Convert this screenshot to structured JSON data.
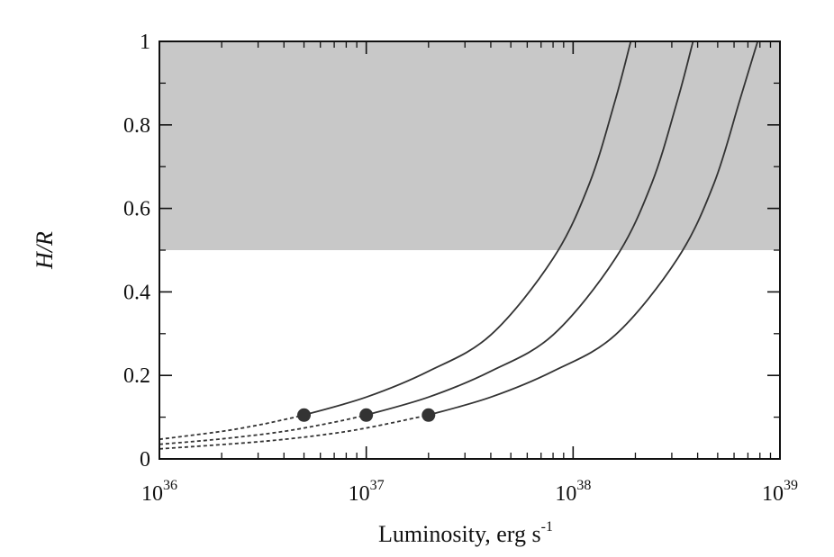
{
  "chart_data": {
    "type": "line",
    "title": "",
    "xlabel": "Luminosity, erg s",
    "xlabel_exponent": "-1",
    "ylabel": "H/R",
    "xscale": "log",
    "xlim": [
      1e+36,
      1e+39
    ],
    "ylim": [
      0,
      1
    ],
    "x_ticks": [
      {
        "value": 1e+36,
        "base": "10",
        "exp": "36"
      },
      {
        "value": 1e+37,
        "base": "10",
        "exp": "37"
      },
      {
        "value": 1e+38,
        "base": "10",
        "exp": "38"
      },
      {
        "value": 1e+39,
        "base": "10",
        "exp": "39"
      }
    ],
    "y_ticks": [
      {
        "value": 0,
        "label": "0"
      },
      {
        "value": 0.2,
        "label": "0.2"
      },
      {
        "value": 0.4,
        "label": "0.4"
      },
      {
        "value": 0.6,
        "label": "0.6"
      },
      {
        "value": 0.8,
        "label": "0.8"
      },
      {
        "value": 1,
        "label": "1"
      }
    ],
    "shaded_region": {
      "y_from": 0.5,
      "y_to": 1.0,
      "color": "#c8c8c8"
    },
    "grid": false,
    "series": [
      {
        "marker": {
          "x": 5e+36,
          "y": 0.105
        },
        "dashed": {
          "x": [
            1e+36,
            2e+36,
            3e+36,
            4e+36,
            5e+36
          ],
          "y": [
            0.047,
            0.066,
            0.081,
            0.094,
            0.105
          ]
        },
        "solid": {
          "x": [
            5e+36,
            1e+37,
            2e+37,
            4e+37,
            8e+37,
            1.2e+38,
            1.6e+38,
            1.9e+38
          ],
          "y": [
            0.105,
            0.148,
            0.21,
            0.297,
            0.48,
            0.66,
            0.86,
            1.0
          ]
        }
      },
      {
        "marker": {
          "x": 1e+37,
          "y": 0.105
        },
        "dashed": {
          "x": [
            1e+36,
            2e+36,
            4e+36,
            7e+36,
            1e+37
          ],
          "y": [
            0.035,
            0.048,
            0.066,
            0.088,
            0.105
          ]
        },
        "solid": {
          "x": [
            1e+37,
            2e+37,
            4e+37,
            8e+37,
            1.6e+38,
            2.4e+38,
            3.2e+38,
            3.8e+38
          ],
          "y": [
            0.105,
            0.148,
            0.21,
            0.297,
            0.48,
            0.66,
            0.86,
            1.0
          ]
        }
      },
      {
        "marker": {
          "x": 2e+37,
          "y": 0.105
        },
        "dashed": {
          "x": [
            1e+36,
            3e+36,
            6e+36,
            1e+37,
            2e+37
          ],
          "y": [
            0.024,
            0.041,
            0.057,
            0.074,
            0.105
          ]
        },
        "solid": {
          "x": [
            2e+37,
            4e+37,
            8e+37,
            1.6e+38,
            3.2e+38,
            4.8e+38,
            6.4e+38,
            7.8e+38
          ],
          "y": [
            0.105,
            0.148,
            0.21,
            0.297,
            0.48,
            0.66,
            0.86,
            1.0
          ]
        }
      }
    ],
    "colors": {
      "line": "#333333",
      "marker": "#333333",
      "axes": "#111111"
    }
  }
}
